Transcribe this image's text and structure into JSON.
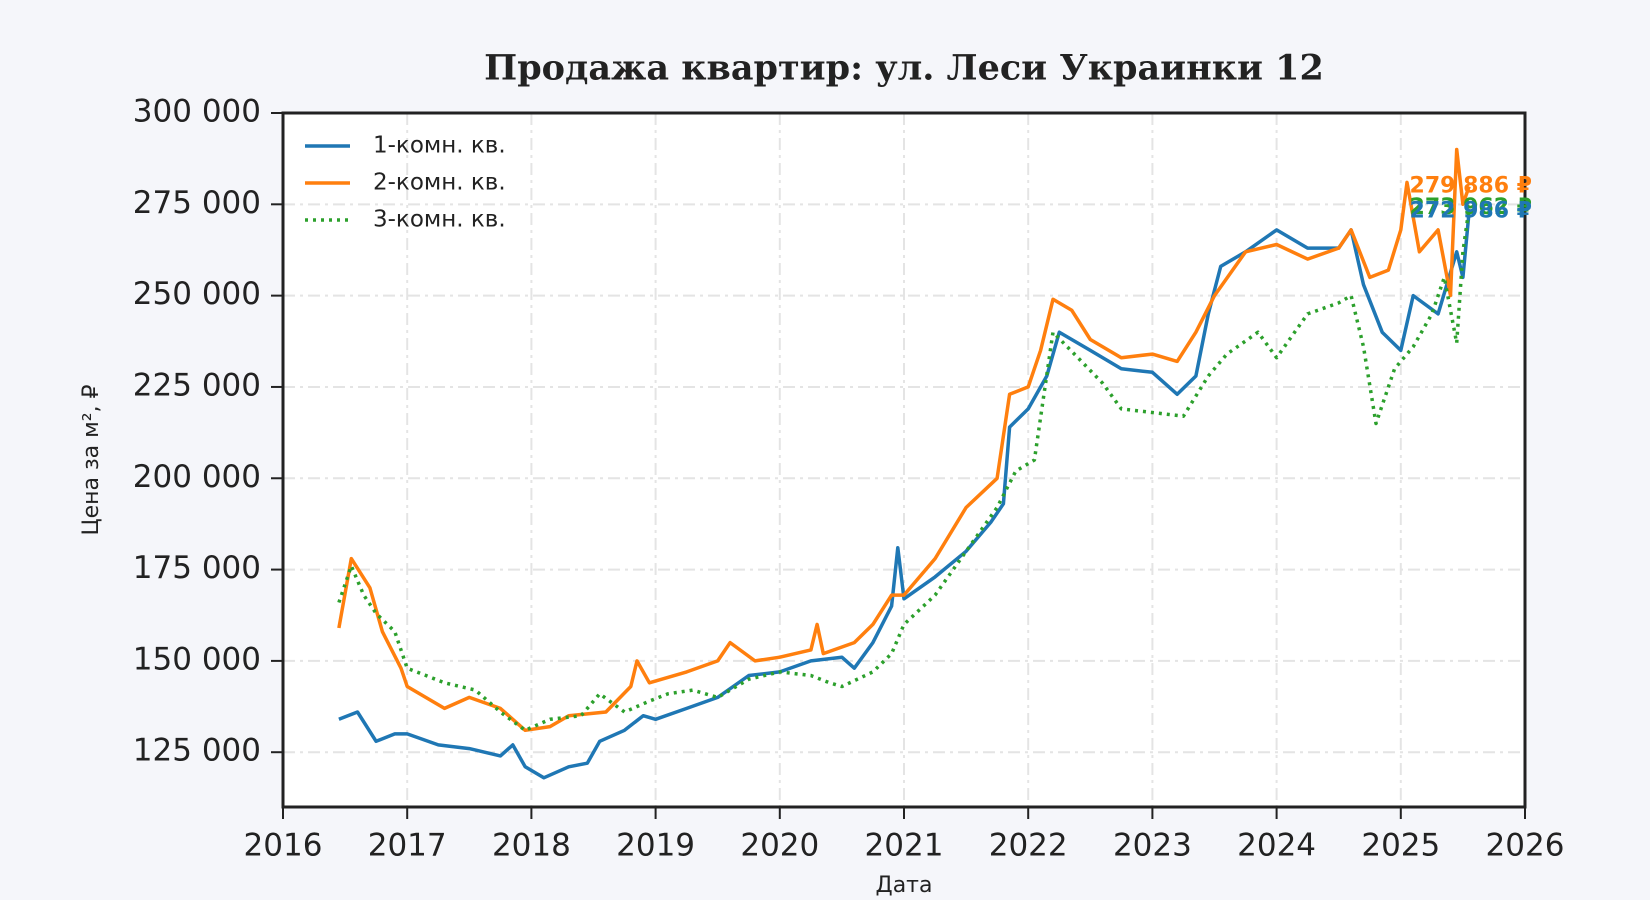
{
  "chart_data": {
    "type": "line",
    "title": "Продажа квартир: ул. Леси Украинки 12",
    "xlabel": "Дата",
    "ylabel": "Цена за м², ₽",
    "xlim": [
      2016,
      2026
    ],
    "xticks": [
      2016,
      2017,
      2018,
      2019,
      2020,
      2021,
      2022,
      2023,
      2024,
      2025,
      2026
    ],
    "ylim": [
      110000,
      300000
    ],
    "yticks": [
      {
        "value": 125000,
        "label": "125 000"
      },
      {
        "value": 150000,
        "label": "150 000"
      },
      {
        "value": 175000,
        "label": "175 000"
      },
      {
        "value": 200000,
        "label": "200 000"
      },
      {
        "value": 225000,
        "label": "225 000"
      },
      {
        "value": 250000,
        "label": "250 000"
      },
      {
        "value": 275000,
        "label": "275 000"
      },
      {
        "value": 300000,
        "label": "300 000"
      }
    ],
    "grid": true,
    "legend": "upper-left",
    "series": [
      {
        "name": "1-комн. кв.",
        "color": "#1f77b4",
        "dash": "solid",
        "x": [
          2016.45,
          2016.6,
          2016.75,
          2016.9,
          2017.0,
          2017.25,
          2017.5,
          2017.75,
          2017.85,
          2017.95,
          2018.1,
          2018.3,
          2018.45,
          2018.55,
          2018.75,
          2018.9,
          2019.0,
          2019.25,
          2019.5,
          2019.75,
          2020.0,
          2020.25,
          2020.5,
          2020.6,
          2020.75,
          2020.9,
          2020.95,
          2021.0,
          2021.25,
          2021.5,
          2021.7,
          2021.8,
          2021.85,
          2022.0,
          2022.15,
          2022.25,
          2022.5,
          2022.75,
          2023.0,
          2023.2,
          2023.35,
          2023.45,
          2023.55,
          2023.75,
          2024.0,
          2024.25,
          2024.5,
          2024.6,
          2024.7,
          2024.85,
          2025.0,
          2025.1,
          2025.3,
          2025.45,
          2025.5,
          2025.55
        ],
        "values": [
          134000,
          136000,
          128000,
          130000,
          130000,
          127000,
          126000,
          124000,
          127000,
          121000,
          118000,
          121000,
          122000,
          128000,
          131000,
          135000,
          134000,
          137000,
          140000,
          146000,
          147000,
          150000,
          151000,
          148000,
          155000,
          165000,
          181000,
          167000,
          173000,
          180000,
          188000,
          193000,
          214000,
          219000,
          228000,
          240000,
          235000,
          230000,
          229000,
          223000,
          228000,
          245000,
          258000,
          262000,
          268000,
          263000,
          263000,
          268000,
          253000,
          240000,
          235000,
          250000,
          245000,
          262000,
          255000,
          272986
        ]
      },
      {
        "name": "2-комн. кв.",
        "color": "#ff7f0e",
        "dash": "solid",
        "x": [
          2016.45,
          2016.55,
          2016.7,
          2016.8,
          2016.95,
          2017.0,
          2017.3,
          2017.5,
          2017.75,
          2017.95,
          2018.15,
          2018.3,
          2018.6,
          2018.8,
          2018.85,
          2018.95,
          2019.25,
          2019.5,
          2019.6,
          2019.8,
          2020.0,
          2020.25,
          2020.3,
          2020.35,
          2020.6,
          2020.75,
          2020.9,
          2021.0,
          2021.25,
          2021.5,
          2021.75,
          2021.85,
          2022.0,
          2022.1,
          2022.2,
          2022.35,
          2022.5,
          2022.75,
          2023.0,
          2023.2,
          2023.35,
          2023.5,
          2023.75,
          2024.0,
          2024.25,
          2024.5,
          2024.6,
          2024.75,
          2024.9,
          2025.0,
          2025.05,
          2025.15,
          2025.3,
          2025.4,
          2025.45,
          2025.5,
          2025.55
        ],
        "values": [
          159000,
          178000,
          170000,
          158000,
          148000,
          143000,
          137000,
          140000,
          137000,
          131000,
          132000,
          135000,
          136000,
          143000,
          150000,
          144000,
          147000,
          150000,
          155000,
          150000,
          151000,
          153000,
          160000,
          152000,
          155000,
          160000,
          168000,
          168000,
          178000,
          192000,
          200000,
          223000,
          225000,
          235000,
          249000,
          246000,
          238000,
          233000,
          234000,
          232000,
          240000,
          250000,
          262000,
          264000,
          260000,
          263000,
          268000,
          255000,
          257000,
          268000,
          281000,
          262000,
          268000,
          250000,
          290000,
          275000,
          279886
        ]
      },
      {
        "name": "3-комн. кв.",
        "color": "#2ca02c",
        "dash": "dotted",
        "x": [
          2016.45,
          2016.55,
          2016.65,
          2016.75,
          2016.9,
          2017.0,
          2017.3,
          2017.55,
          2017.75,
          2017.95,
          2018.15,
          2018.4,
          2018.55,
          2018.75,
          2018.95,
          2019.1,
          2019.3,
          2019.5,
          2019.75,
          2020.0,
          2020.25,
          2020.4,
          2020.5,
          2020.75,
          2020.9,
          2021.0,
          2021.25,
          2021.5,
          2021.75,
          2021.9,
          2022.05,
          2022.2,
          2022.4,
          2022.6,
          2022.75,
          2023.0,
          2023.25,
          2023.45,
          2023.6,
          2023.85,
          2024.0,
          2024.25,
          2024.5,
          2024.6,
          2024.7,
          2024.8,
          2024.95,
          2025.1,
          2025.25,
          2025.35,
          2025.45,
          2025.5,
          2025.55
        ],
        "values": [
          166000,
          176000,
          168000,
          163000,
          158000,
          148000,
          144000,
          142000,
          136000,
          131000,
          134000,
          135000,
          141000,
          136000,
          139000,
          141000,
          142000,
          140000,
          145000,
          147000,
          146000,
          144000,
          143000,
          147000,
          152000,
          160000,
          168000,
          180000,
          192000,
          202000,
          205000,
          240000,
          233000,
          226000,
          219000,
          218000,
          217000,
          228000,
          234000,
          240000,
          233000,
          245000,
          248000,
          250000,
          236000,
          215000,
          230000,
          236000,
          245000,
          255000,
          237000,
          262000,
          273962
        ]
      }
    ],
    "annotations": [
      {
        "text": "279 886 ₽",
        "value": 279886,
        "color": "#ff7f0e"
      },
      {
        "text": "273 962 ₽",
        "value": 273962,
        "color": "#2ca02c"
      },
      {
        "text": "272 986 ₽",
        "value": 272986,
        "color": "#1f77b4"
      }
    ]
  }
}
